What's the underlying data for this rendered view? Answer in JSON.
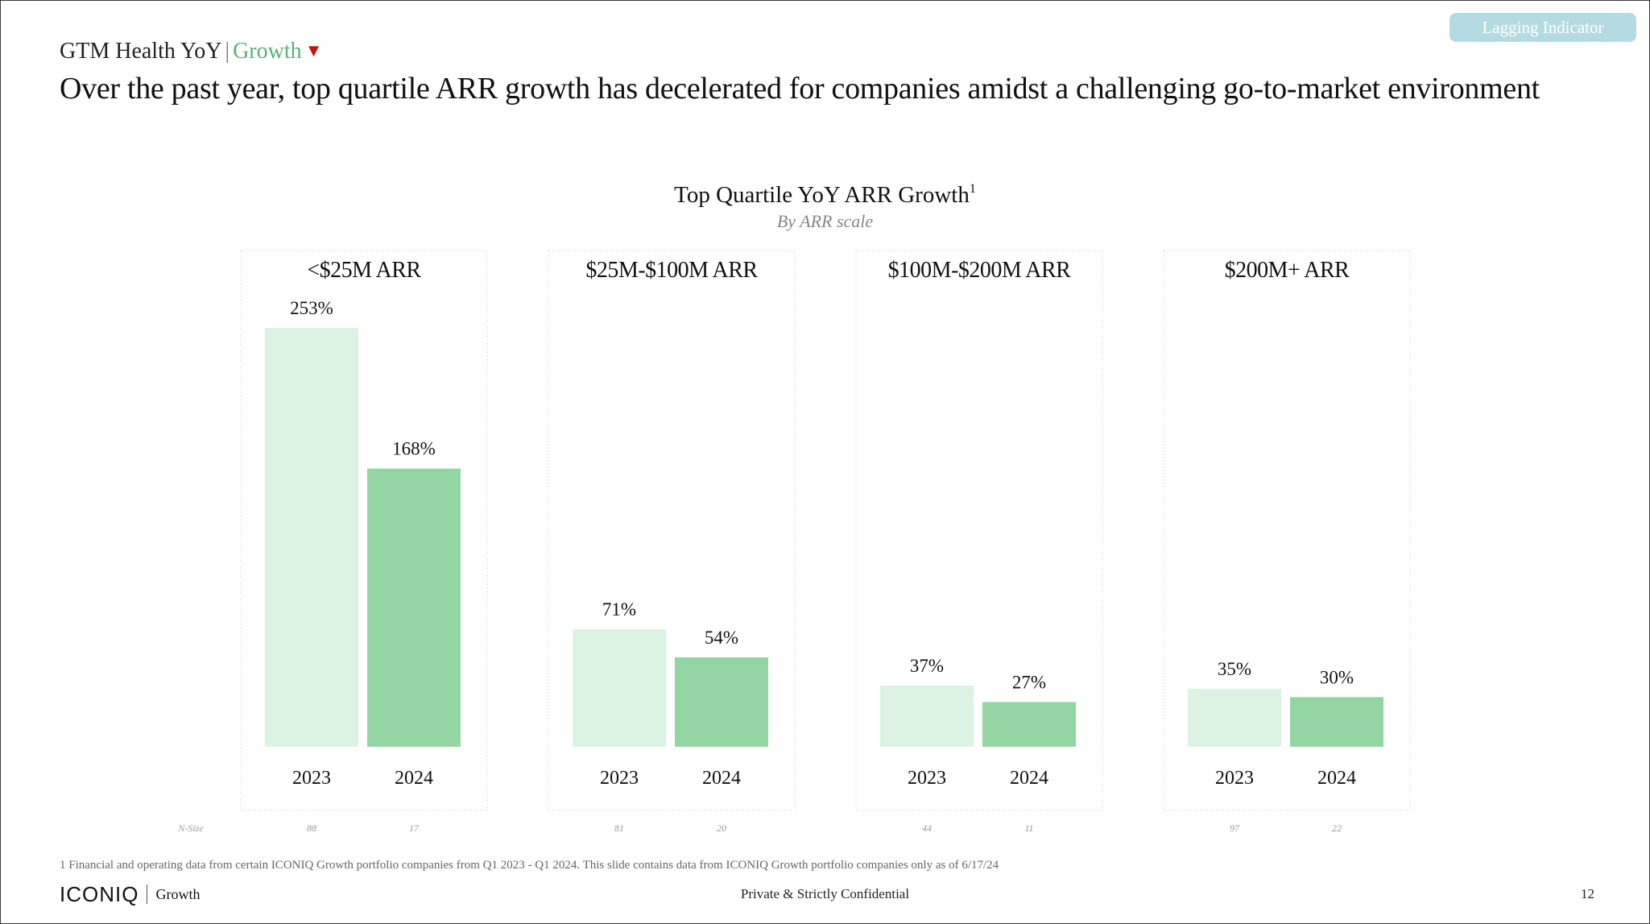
{
  "header": {
    "badge": "Lagging Indicator",
    "breadcrumb_section": "GTM Health YoY",
    "breadcrumb_separator": "|",
    "breadcrumb_current": "Growth",
    "breadcrumb_indicator": "▼",
    "headline": "Over the past year, top quartile ARR growth has decelerated for companies amidst a challenging go-to-market environment"
  },
  "chart_data": {
    "type": "bar",
    "title": "Top Quartile YoY ARR Growth",
    "title_footnote_marker": "1",
    "subtitle": "By ARR scale",
    "categories": [
      "2023",
      "2024"
    ],
    "ylim": [
      0,
      253
    ],
    "unit": "%",
    "n_size_label": "N-Size",
    "colors": {
      "2023": "#dcf2e3",
      "2024": "#93d6a3"
    },
    "panels": [
      {
        "title": "<$25M ARR",
        "values": [
          253,
          168
        ],
        "labels": [
          "253%",
          "168%"
        ],
        "n_size": [
          "88",
          "17"
        ]
      },
      {
        "title": "$25M-$100M ARR",
        "values": [
          71,
          54
        ],
        "labels": [
          "71%",
          "54%"
        ],
        "n_size": [
          "81",
          "20"
        ]
      },
      {
        "title": "$100M-$200M ARR",
        "values": [
          37,
          27
        ],
        "labels": [
          "37%",
          "27%"
        ],
        "n_size": [
          "44",
          "11"
        ]
      },
      {
        "title": "$200M+ ARR",
        "values": [
          35,
          30
        ],
        "labels": [
          "35%",
          "30%"
        ],
        "n_size": [
          "97",
          "22"
        ]
      }
    ]
  },
  "footer": {
    "footnote": "1 Financial and operating data from certain ICONIQ Growth portfolio companies from Q1 2023 - Q1 2024. This slide contains data from ICONIQ Growth portfolio companies only as of 6/17/24",
    "logo_main": "ICONIQ",
    "logo_sub": "Growth",
    "confidential": "Private & Strictly Confidential",
    "page_number": "12"
  }
}
